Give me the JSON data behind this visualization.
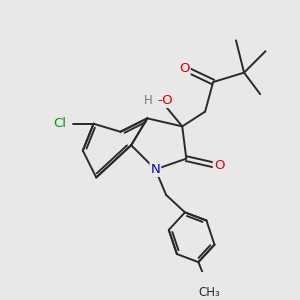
{
  "bg_color": "#e8e8e8",
  "bond_color": "#2a2a2a",
  "atom_colors": {
    "O": "#dd0000",
    "N": "#0000cc",
    "Cl": "#009900",
    "H": "#777777",
    "C": "#2a2a2a"
  },
  "lw": 1.4,
  "fs": 9.5,
  "fs_small": 8.5
}
